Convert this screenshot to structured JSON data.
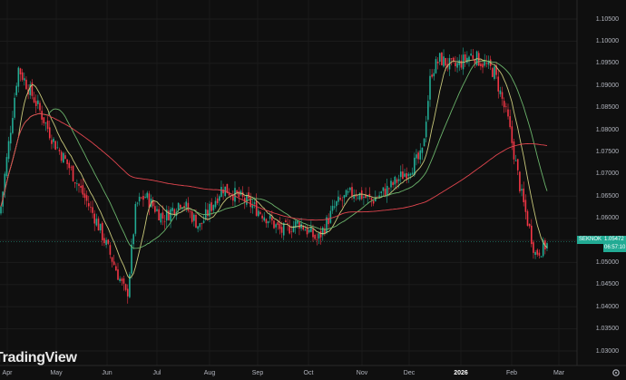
{
  "chart_data": {
    "type": "candlestick",
    "symbol": "SEKNOK",
    "price_display": "1.05472",
    "countdown_display": "06:57:10",
    "watermark": "TradingView",
    "y_ticks": [
      "1.10500",
      "1.10000",
      "1.09500",
      "1.09000",
      "1.08500",
      "1.08000",
      "1.07500",
      "1.07000",
      "1.06500",
      "1.06000",
      "1.05500",
      "1.05000",
      "1.04500",
      "1.04000",
      "1.03500",
      "1.03000"
    ],
    "ylim": [
      1.0275,
      1.108
    ],
    "x_ticks": [
      "Apr",
      "May",
      "Jun",
      "Jul",
      "Aug",
      "Sep",
      "Oct",
      "Nov",
      "Dec",
      "2026",
      "Feb",
      "Mar"
    ],
    "x_ticks_bold": [
      "2026"
    ],
    "last_price": 1.05472,
    "colors": {
      "up": "#22ab94",
      "down": "#f23645",
      "ma_fast": "#c8c87a",
      "ma_mid": "#6bb36b",
      "ma_slow": "#e0454e"
    },
    "series": [
      {
        "name": "SEKNOK",
        "anchor_closes": [
          {
            "x": "Apr",
            "value": 1.061
          },
          {
            "x": "Apr",
            "value": 1.094
          },
          {
            "x": "Apr",
            "value": 1.086
          },
          {
            "x": "May",
            "value": 1.077
          },
          {
            "x": "May",
            "value": 1.072
          },
          {
            "x": "May",
            "value": 1.066
          },
          {
            "x": "Jun",
            "value": 1.06
          },
          {
            "x": "Jun",
            "value": 1.05
          },
          {
            "x": "Jun",
            "value": 1.042
          },
          {
            "x": "Jun",
            "value": 1.063
          },
          {
            "x": "Jul",
            "value": 1.065
          },
          {
            "x": "Jul",
            "value": 1.06
          },
          {
            "x": "Jul",
            "value": 1.064
          },
          {
            "x": "Aug",
            "value": 1.058
          },
          {
            "x": "Aug",
            "value": 1.067
          },
          {
            "x": "Aug",
            "value": 1.064
          },
          {
            "x": "Sep",
            "value": 1.061
          },
          {
            "x": "Sep",
            "value": 1.057
          },
          {
            "x": "Sep",
            "value": 1.059
          },
          {
            "x": "Oct",
            "value": 1.055
          },
          {
            "x": "Oct",
            "value": 1.063
          },
          {
            "x": "Oct",
            "value": 1.066
          },
          {
            "x": "Nov",
            "value": 1.064
          },
          {
            "x": "Nov",
            "value": 1.067
          },
          {
            "x": "Nov",
            "value": 1.071
          },
          {
            "x": "Dec",
            "value": 1.074
          },
          {
            "x": "Dec",
            "value": 1.093
          },
          {
            "x": "Dec",
            "value": 1.096
          },
          {
            "x": "2026",
            "value": 1.094
          },
          {
            "x": "2026",
            "value": 1.097
          },
          {
            "x": "2026",
            "value": 1.093
          },
          {
            "x": "Feb",
            "value": 1.082
          },
          {
            "x": "Feb",
            "value": 1.065
          },
          {
            "x": "Feb",
            "value": 1.052
          },
          {
            "x": "Feb",
            "value": 1.054
          }
        ]
      }
    ]
  }
}
